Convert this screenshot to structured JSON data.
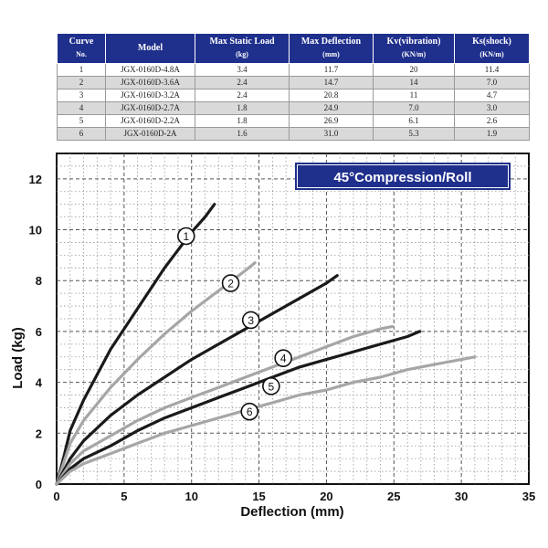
{
  "table": {
    "headers": [
      {
        "label": "Curve",
        "sub": "No."
      },
      {
        "label": "Model",
        "sub": ""
      },
      {
        "label": "Max Static Load",
        "sub": "(kg)"
      },
      {
        "label": "Max Deflection",
        "sub": "(mm)"
      },
      {
        "label": "Kv(vibration)",
        "sub": "(KN/m)"
      },
      {
        "label": "Ks(shock)",
        "sub": "(KN/m)"
      }
    ],
    "rows": [
      [
        "1",
        "JGX-0160D-4.8A",
        "3.4",
        "11.7",
        "20",
        "11.4"
      ],
      [
        "2",
        "JGX-0160D-3.6A",
        "2.4",
        "14.7",
        "14",
        "7.0"
      ],
      [
        "3",
        "JGX-0160D-3.2A",
        "2.4",
        "20.8",
        "11",
        "4.7"
      ],
      [
        "4",
        "JGX-0160D-2.7A",
        "1.8",
        "24.9",
        "7.0",
        "3.0"
      ],
      [
        "5",
        "JGX-0160D-2.2A",
        "1.8",
        "26.9",
        "6.1",
        "2.6"
      ],
      [
        "6",
        "JGX-0160D-2A",
        "1.6",
        "31.0",
        "5.3",
        "1.9"
      ]
    ]
  },
  "chart_data": {
    "type": "line",
    "title": "45°Compression/Roll",
    "xlabel": "Deflection (mm)",
    "ylabel": "Load (kg)",
    "xlim": [
      0,
      35
    ],
    "ylim": [
      0,
      13
    ],
    "xticks": [
      0,
      5,
      10,
      15,
      20,
      25,
      30,
      35
    ],
    "yticks": [
      0,
      2,
      4,
      6,
      8,
      10,
      12
    ],
    "grid": true,
    "series": [
      {
        "name": "1",
        "color": "#1a1a1a",
        "x": [
          0,
          0.5,
          1,
          2,
          3,
          4,
          5,
          6,
          7,
          8,
          9,
          10,
          11,
          11.7
        ],
        "y": [
          0,
          1.0,
          2.1,
          3.3,
          4.3,
          5.3,
          6.1,
          6.9,
          7.7,
          8.5,
          9.2,
          9.9,
          10.5,
          11.0
        ]
      },
      {
        "name": "2",
        "color": "#a6a6a6",
        "x": [
          0,
          1,
          2,
          4,
          6,
          8,
          10,
          12,
          14,
          14.7
        ],
        "y": [
          0,
          1.6,
          2.5,
          3.8,
          4.9,
          5.9,
          6.8,
          7.6,
          8.4,
          8.7
        ]
      },
      {
        "name": "3",
        "color": "#1a1a1a",
        "x": [
          0,
          1,
          2,
          4,
          6,
          8,
          10,
          12,
          14,
          16,
          18,
          20,
          20.8
        ],
        "y": [
          0,
          1.0,
          1.7,
          2.7,
          3.5,
          4.2,
          4.9,
          5.5,
          6.1,
          6.7,
          7.3,
          7.9,
          8.2
        ]
      },
      {
        "name": "4",
        "color": "#a6a6a6",
        "x": [
          0,
          1,
          2,
          4,
          6,
          8,
          10,
          12,
          14,
          16,
          18,
          20,
          22,
          24,
          24.9
        ],
        "y": [
          0,
          0.8,
          1.3,
          1.9,
          2.5,
          3.0,
          3.4,
          3.8,
          4.2,
          4.6,
          5.0,
          5.4,
          5.8,
          6.1,
          6.2
        ]
      },
      {
        "name": "5",
        "color": "#1a1a1a",
        "x": [
          0,
          1,
          2,
          4,
          6,
          8,
          10,
          12,
          14,
          16,
          18,
          20,
          22,
          24,
          26,
          26.9
        ],
        "y": [
          0,
          0.6,
          1.0,
          1.5,
          2.1,
          2.6,
          3.0,
          3.4,
          3.8,
          4.2,
          4.6,
          4.9,
          5.2,
          5.5,
          5.8,
          6.0
        ]
      },
      {
        "name": "6",
        "color": "#a6a6a6",
        "x": [
          0,
          1,
          2,
          4,
          6,
          8,
          10,
          12,
          14,
          16,
          18,
          20,
          22,
          24,
          26,
          28,
          30,
          31
        ],
        "y": [
          0,
          0.5,
          0.8,
          1.2,
          1.6,
          2.0,
          2.3,
          2.6,
          2.9,
          3.2,
          3.5,
          3.7,
          4.0,
          4.2,
          4.5,
          4.7,
          4.9,
          5.0
        ]
      }
    ],
    "curve_labels": [
      {
        "text": "1",
        "x": 9.6,
        "y": 9.75
      },
      {
        "text": "2",
        "x": 12.9,
        "y": 7.9
      },
      {
        "text": "3",
        "x": 14.4,
        "y": 6.45
      },
      {
        "text": "4",
        "x": 16.8,
        "y": 4.95
      },
      {
        "text": "5",
        "x": 15.9,
        "y": 3.85
      },
      {
        "text": "6",
        "x": 14.3,
        "y": 2.85
      }
    ]
  }
}
